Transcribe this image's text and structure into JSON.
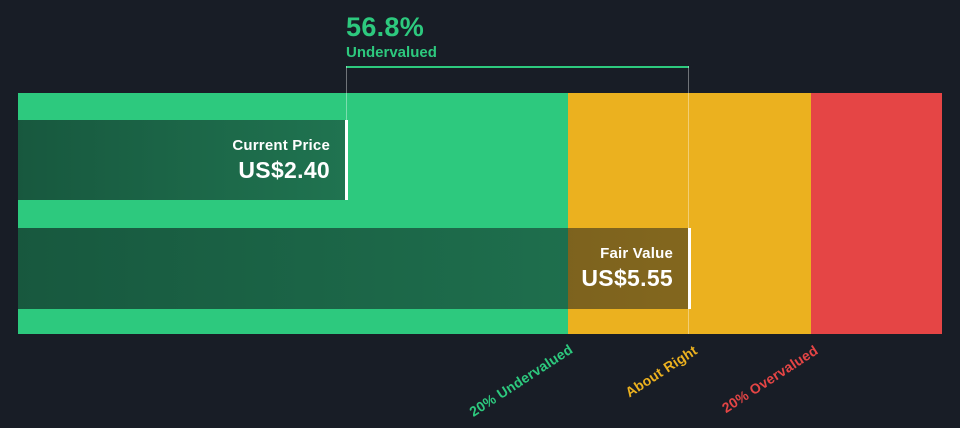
{
  "colors": {
    "background": "#181d26",
    "green": "#2dc97e",
    "amber": "#ebb11f",
    "red": "#e54545",
    "marker_white": "#ffffff",
    "bracket_gray": "rgba(255,255,255,0.38)"
  },
  "annotation": {
    "percent": "56.8%",
    "state": "Undervalued"
  },
  "bars": {
    "current_price": {
      "label": "Current Price",
      "value": "US$2.40"
    },
    "fair_value": {
      "label": "Fair Value",
      "value": "US$5.55"
    }
  },
  "zone_labels": [
    {
      "label": "20% Undervalued",
      "color": "#2dc97e"
    },
    {
      "label": "About Right",
      "color": "#ebb11f"
    },
    {
      "label": "20% Overvalued",
      "color": "#e54545"
    }
  ],
  "chart_data": {
    "type": "bar",
    "description": "Share price vs fair value valuation gauge",
    "currency": "US$",
    "current_price": 2.4,
    "fair_value": 5.55,
    "discount_percent": 56.8,
    "valuation_state": "Undervalued",
    "zones": [
      {
        "label": "20% Undervalued",
        "price_range": [
          null,
          4.44
        ],
        "color": "#2dc97e"
      },
      {
        "label": "About Right",
        "price_range": [
          4.44,
          6.66
        ],
        "color": "#ebb11f"
      },
      {
        "label": "20% Overvalued",
        "price_range": [
          6.66,
          null
        ],
        "color": "#e54545"
      }
    ],
    "legend_position": "bottom",
    "grid": false
  }
}
